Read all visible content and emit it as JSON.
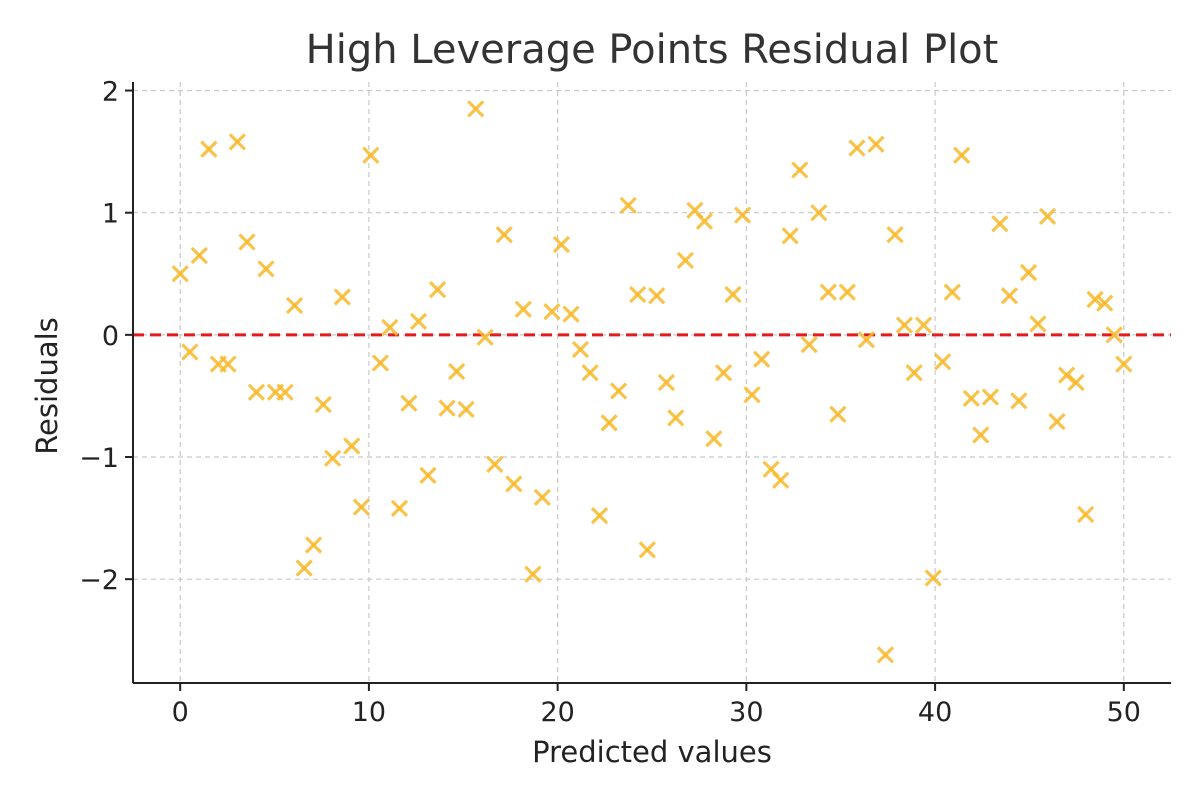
{
  "chart_data": {
    "type": "scatter",
    "title": "High Leverage Points Residual Plot",
    "xlabel": "Predicted values",
    "ylabel": "Residuals",
    "xlim": [
      -2.5,
      52.5
    ],
    "ylim": [
      -2.85,
      2.07
    ],
    "xticks": [
      0,
      10,
      20,
      30,
      40,
      50
    ],
    "xtick_labels": [
      "0",
      "10",
      "20",
      "30",
      "40",
      "50"
    ],
    "yticks": [
      2,
      1,
      0,
      -1,
      -2
    ],
    "ytick_labels": [
      "2",
      "1",
      "0",
      "−1",
      "−2"
    ],
    "grid": true,
    "marker": "x",
    "marker_color": "#f9b92b",
    "reference_line": {
      "y": 0,
      "color": "#e41a1c",
      "style": "dashed"
    },
    "x": [
      0.0,
      0.51,
      1.01,
      1.52,
      2.02,
      2.53,
      3.03,
      3.54,
      4.04,
      4.55,
      5.05,
      5.56,
      6.06,
      6.57,
      7.07,
      7.58,
      8.08,
      8.59,
      9.09,
      9.6,
      10.1,
      10.61,
      11.11,
      11.62,
      12.12,
      12.63,
      13.13,
      13.64,
      14.14,
      14.65,
      15.15,
      15.66,
      16.16,
      16.67,
      17.17,
      17.68,
      18.18,
      18.69,
      19.19,
      19.7,
      20.2,
      20.71,
      21.21,
      21.72,
      22.22,
      22.73,
      23.23,
      23.74,
      24.24,
      24.75,
      25.25,
      25.76,
      26.26,
      26.77,
      27.27,
      27.78,
      28.28,
      28.79,
      29.29,
      29.8,
      30.3,
      30.81,
      31.31,
      31.82,
      32.32,
      32.83,
      33.33,
      33.84,
      34.34,
      34.85,
      35.35,
      35.86,
      36.36,
      36.87,
      37.37,
      37.88,
      38.38,
      38.89,
      39.39,
      39.9,
      40.4,
      40.91,
      41.41,
      41.92,
      42.42,
      42.93,
      43.43,
      43.94,
      44.44,
      44.95,
      45.45,
      45.96,
      46.46,
      46.97,
      47.47,
      47.98,
      48.48,
      48.99,
      49.49,
      50.0
    ],
    "y": [
      0.5,
      -0.14,
      0.65,
      1.52,
      -0.24,
      -0.24,
      1.58,
      0.76,
      -0.47,
      0.54,
      -0.47,
      -0.47,
      0.24,
      -1.91,
      -1.72,
      -0.57,
      -1.01,
      0.31,
      -0.91,
      -1.41,
      1.47,
      -0.23,
      0.06,
      -1.42,
      -0.56,
      0.11,
      -1.15,
      0.37,
      -0.6,
      -0.3,
      -0.61,
      1.85,
      -0.02,
      -1.06,
      0.82,
      -1.22,
      0.21,
      -1.96,
      -1.33,
      0.19,
      0.74,
      0.17,
      -0.12,
      -0.31,
      -1.48,
      -0.72,
      -0.46,
      1.06,
      0.33,
      -1.76,
      0.32,
      -0.39,
      -0.68,
      0.61,
      1.02,
      0.93,
      -0.85,
      -0.31,
      0.33,
      0.98,
      -0.49,
      -0.2,
      -1.1,
      -1.19,
      0.81,
      1.35,
      -0.08,
      1.0,
      0.35,
      -0.65,
      0.35,
      1.53,
      -0.04,
      1.56,
      -2.62,
      0.82,
      0.08,
      -0.31,
      0.08,
      -1.99,
      -0.22,
      0.35,
      1.47,
      -0.52,
      -0.82,
      -0.51,
      0.91,
      0.32,
      -0.54,
      0.51,
      0.09,
      0.97,
      -0.71,
      -0.33,
      -0.39,
      -1.47,
      0.29,
      0.26,
      0.0,
      -0.24
    ]
  }
}
